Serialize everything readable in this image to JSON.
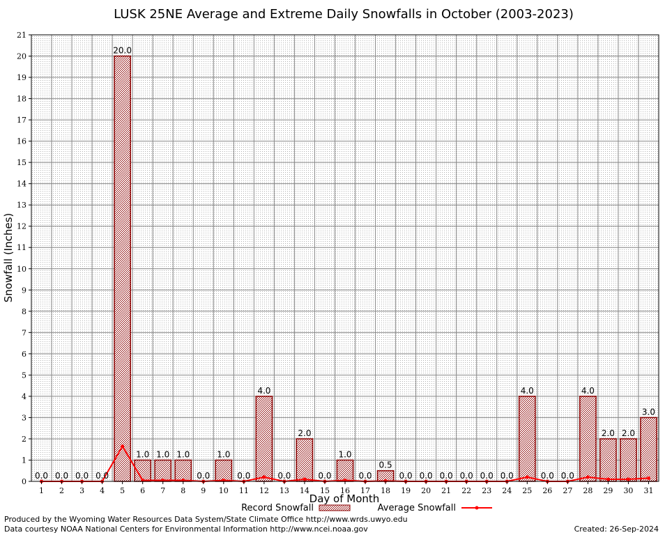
{
  "chart_data": {
    "type": "bar",
    "title": "LUSK 25NE Average and Extreme Daily Snowfalls in October (2003-2023)",
    "xlabel": "Day of Month",
    "ylabel": "Snowfall (Inches)",
    "ylim": [
      0,
      21
    ],
    "yticks": [
      "0",
      "1",
      "2",
      "3",
      "4",
      "5",
      "6",
      "7",
      "8",
      "9",
      "10",
      "11",
      "12",
      "13",
      "14",
      "15",
      "16",
      "17",
      "18",
      "19",
      "20",
      "21"
    ],
    "categories": [
      "1",
      "2",
      "3",
      "4",
      "5",
      "6",
      "7",
      "8",
      "9",
      "10",
      "11",
      "12",
      "13",
      "14",
      "15",
      "16",
      "17",
      "18",
      "19",
      "20",
      "21",
      "22",
      "23",
      "24",
      "25",
      "26",
      "27",
      "28",
      "29",
      "30",
      "31"
    ],
    "series": [
      {
        "name": "Record Snowfall",
        "type": "bar",
        "color": "#8b0000",
        "values": [
          0.0,
          0.0,
          0.0,
          0.0,
          20.0,
          1.0,
          1.0,
          1.0,
          0.0,
          1.0,
          0.0,
          4.0,
          0.0,
          2.0,
          0.0,
          1.0,
          0.0,
          0.5,
          0.0,
          0.0,
          0.0,
          0.0,
          0.0,
          0.0,
          4.0,
          0.0,
          0.0,
          4.0,
          2.0,
          2.0,
          3.0
        ],
        "labels": [
          "0.0",
          "0.0",
          "0.0",
          "0.0",
          "20.0",
          "1.0",
          "1.0",
          "1.0",
          "0.0",
          "1.0",
          "0.0",
          "4.0",
          "0.0",
          "2.0",
          "0.0",
          "1.0",
          "0.0",
          "0.5",
          "0.0",
          "0.0",
          "0.0",
          "0.0",
          "0.0",
          "0.0",
          "4.0",
          "0.0",
          "0.0",
          "4.0",
          "2.0",
          "2.0",
          "3.0"
        ]
      },
      {
        "name": "Average Snowfall",
        "type": "line",
        "color": "#ff0000",
        "values": [
          0,
          0,
          0,
          0,
          1.65,
          0.05,
          0.05,
          0.05,
          0,
          0.05,
          0,
          0.2,
          0,
          0.1,
          0,
          0.05,
          0,
          0.02,
          0,
          0,
          0,
          0,
          0,
          0,
          0.2,
          0,
          0,
          0.2,
          0.1,
          0.1,
          0.15
        ]
      }
    ],
    "grid": true,
    "legend": "bottom-center"
  },
  "footer": {
    "producer": "Produced by the Wyoming Water Resources Data System/State Climate Office http://www.wrds.uwyo.edu",
    "courtesy": "Data courtesy NOAA National Centers for Environmental Information http://www.ncei.noaa.gov",
    "created": "Created:  26-Sep-2024"
  }
}
